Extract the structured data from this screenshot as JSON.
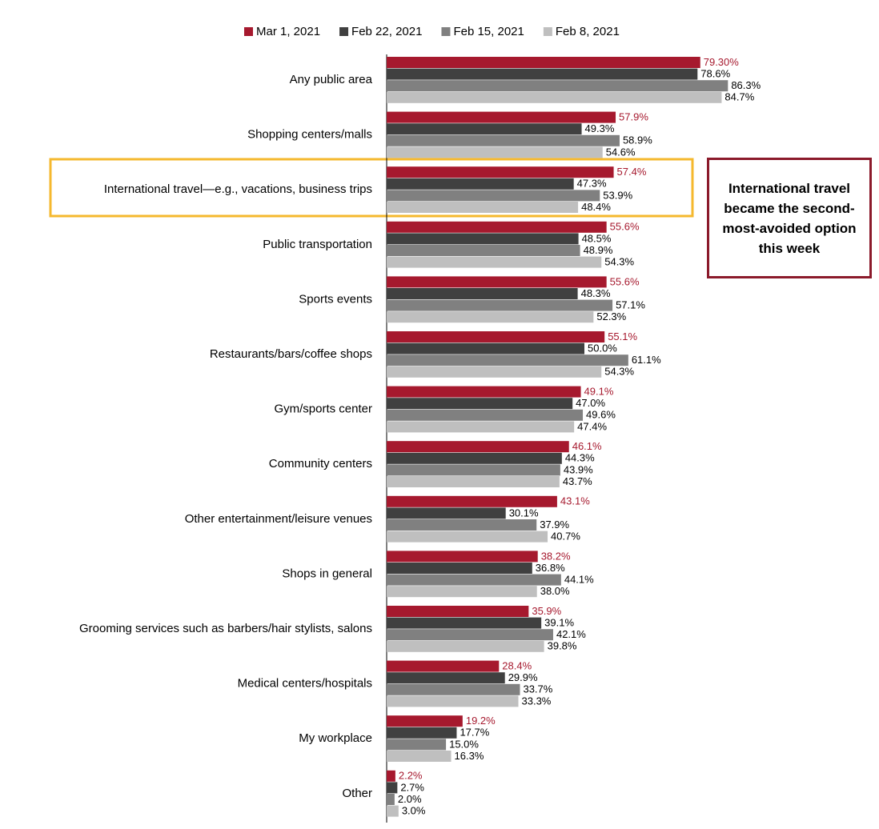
{
  "chart_data": {
    "type": "bar",
    "orientation": "horizontal",
    "categories": [
      "Any public area",
      "Shopping centers/malls",
      "International travel—e.g., vacations, business trips",
      "Public transportation",
      "Sports events",
      "Restaurants/bars/coffee shops",
      "Gym/sports center",
      "Community centers",
      "Other entertainment/leisure venues",
      "Shops in general",
      "Grooming services such as barbers/hair stylists, salons",
      "Medical centers/hospitals",
      "My workplace",
      "Other"
    ],
    "series": [
      {
        "name": "Mar 1, 2021",
        "color": "#a6192e",
        "values": [
          79.3,
          57.9,
          57.4,
          55.6,
          55.6,
          55.1,
          49.1,
          46.1,
          43.1,
          38.2,
          35.9,
          28.4,
          19.2,
          2.2
        ],
        "value_labels": [
          "79.30%",
          "57.9%",
          "57.4%",
          "55.6%",
          "55.6%",
          "55.1%",
          "49.1%",
          "46.1%",
          "43.1%",
          "38.2%",
          "35.9%",
          "28.4%",
          "19.2%",
          "2.2%"
        ]
      },
      {
        "name": "Feb 22, 2021",
        "color": "#404040",
        "values": [
          78.6,
          49.3,
          47.3,
          48.5,
          48.3,
          50.0,
          47.0,
          44.3,
          30.1,
          36.8,
          39.1,
          29.9,
          17.7,
          2.7
        ],
        "value_labels": [
          "78.6%",
          "49.3%",
          "47.3%",
          "48.5%",
          "48.3%",
          "50.0%",
          "47.0%",
          "44.3%",
          "30.1%",
          "36.8%",
          "39.1%",
          "29.9%",
          "17.7%",
          "2.7%"
        ]
      },
      {
        "name": "Feb 15, 2021",
        "color": "#808080",
        "values": [
          86.3,
          58.9,
          53.9,
          48.9,
          57.1,
          61.1,
          49.6,
          43.9,
          37.9,
          44.1,
          42.1,
          33.7,
          15.0,
          2.0
        ],
        "value_labels": [
          "86.3%",
          "58.9%",
          "53.9%",
          "48.9%",
          "57.1%",
          "61.1%",
          "49.6%",
          "43.9%",
          "37.9%",
          "44.1%",
          "42.1%",
          "33.7%",
          "15.0%",
          "2.0%"
        ]
      },
      {
        "name": "Feb 8, 2021",
        "color": "#bfbfbf",
        "values": [
          84.7,
          54.6,
          48.4,
          54.3,
          52.3,
          54.3,
          47.4,
          43.7,
          40.7,
          38.0,
          39.8,
          33.3,
          16.3,
          3.0
        ],
        "value_labels": [
          "84.7%",
          "54.6%",
          "48.4%",
          "54.3%",
          "52.3%",
          "54.3%",
          "47.4%",
          "43.7%",
          "40.7%",
          "38.0%",
          "39.8%",
          "33.3%",
          "16.3%",
          "3.0%"
        ]
      }
    ],
    "annotation": "International travel became the second-most-avoided option this week",
    "legend": "top"
  }
}
